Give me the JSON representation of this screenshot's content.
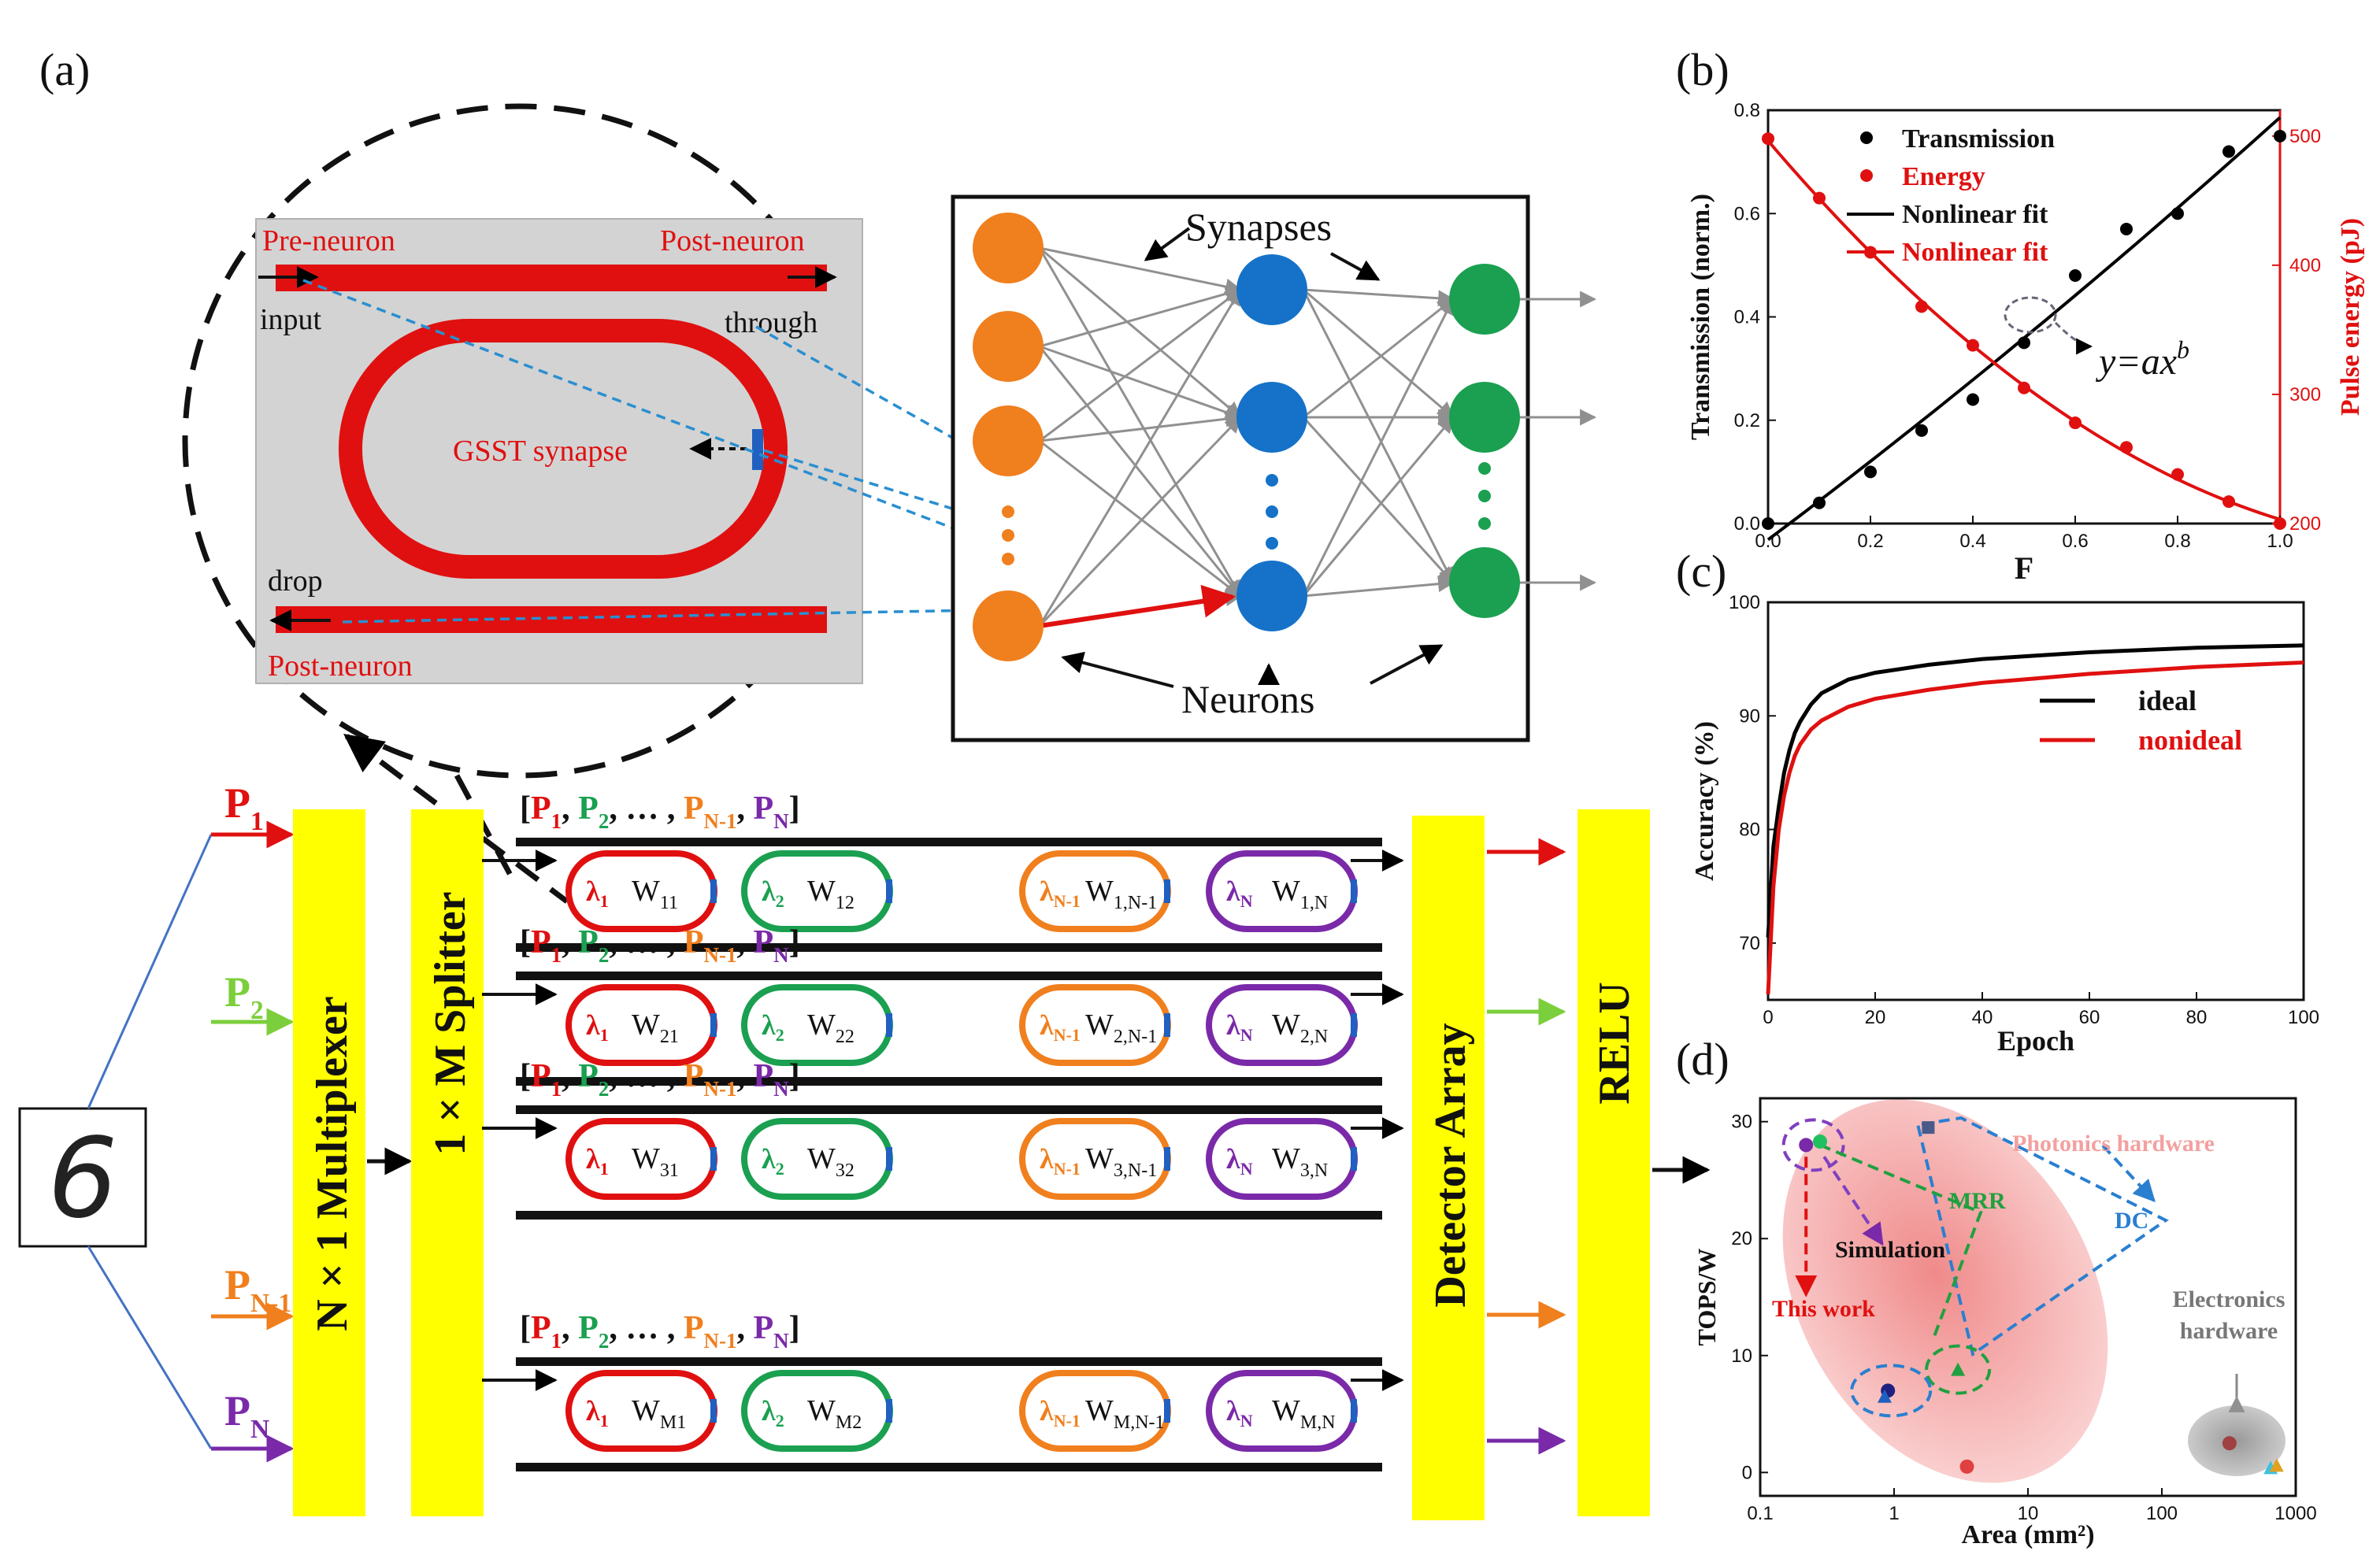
{
  "panels": {
    "a": "(a)",
    "b": "(b)",
    "c": "(c)",
    "d": "(d)"
  },
  "inset": {
    "pre_neuron": "Pre-neuron",
    "post_neuron_top": "Post-neuron",
    "post_neuron_bottom": "Post-neuron",
    "input": "input",
    "through": "through",
    "drop": "drop",
    "synapse": "GSST synapse"
  },
  "network": {
    "synapses": "Synapses",
    "neurons": "Neurons"
  },
  "array": {
    "digit": "6",
    "inputs": [
      {
        "base": "P",
        "sub": "1",
        "color": "#e01010"
      },
      {
        "base": "P",
        "sub": "2",
        "color": "#7ccf3c"
      },
      {
        "base": "P",
        "sub": "N-1",
        "color": "#f07f1e"
      },
      {
        "base": "P",
        "sub": "N",
        "color": "#7a2aa8"
      }
    ],
    "multiplexer": "N × 1 Multiplexer",
    "splitter": "1 × M Splitter",
    "detector": "Detector Array",
    "relu": "RELU",
    "vector_label": [
      "[",
      "P",
      "1",
      ", ",
      "P",
      "2",
      ", … , ",
      "P",
      "N-1",
      ", ",
      "P",
      "N",
      "]"
    ],
    "wavelengths": [
      "λ",
      "λ",
      "λ",
      "λ"
    ],
    "wavelength_subs": [
      "1",
      "2",
      "N-1",
      "N"
    ],
    "rows": [
      {
        "w": [
          "11",
          "12",
          "1,N-1",
          "1,N"
        ]
      },
      {
        "w": [
          "21",
          "22",
          "2,N-1",
          "2,N"
        ]
      },
      {
        "w": [
          "31",
          "32",
          "3,N-1",
          "3,N"
        ]
      },
      {
        "w": [
          "M1",
          "M2",
          "M,N-1",
          "M,N"
        ]
      }
    ]
  },
  "colors": {
    "red": "#e01010",
    "green": "#1aa050",
    "orange": "#f07f1e",
    "purple": "#7a2aa8",
    "blue_node": "#1572c8",
    "yellow": "#ffff00",
    "pink": "#f3a7a7"
  },
  "chart_data": [
    {
      "id": "b",
      "type": "scatter",
      "xlabel": "F",
      "ylabel": "Transmission (norm.)",
      "ylabel_right": "Pulse energy (pJ)",
      "xlim": [
        0,
        1.0
      ],
      "ylim": [
        0,
        0.8
      ],
      "ylim_right": [
        200,
        520
      ],
      "x_ticks": [
        "0.0",
        "0.2",
        "0.4",
        "0.6",
        "0.8",
        "1.0"
      ],
      "y_ticks": [
        "0.0",
        "0.2",
        "0.4",
        "0.6",
        "0.8"
      ],
      "y_right_ticks": [
        "200",
        "300",
        "400",
        "500"
      ],
      "legend": [
        "Transmission",
        "Energy",
        "Nonlinear fit",
        "Nonlinear fit"
      ],
      "annotation": "y=ax^b",
      "series": [
        {
          "name": "Transmission",
          "color": "#000000",
          "axis": "left",
          "x": [
            0,
            0.1,
            0.2,
            0.3,
            0.4,
            0.5,
            0.6,
            0.7,
            0.8,
            0.9,
            1.0
          ],
          "y": [
            0.0,
            0.04,
            0.1,
            0.18,
            0.24,
            0.35,
            0.48,
            0.57,
            0.6,
            0.72,
            0.75
          ]
        },
        {
          "name": "Energy",
          "color": "#e01010",
          "axis": "right",
          "x": [
            0,
            0.1,
            0.2,
            0.3,
            0.4,
            0.5,
            0.6,
            0.7,
            0.8,
            0.9,
            1.0
          ],
          "y": [
            498,
            452,
            410,
            368,
            338,
            305,
            278,
            259,
            238,
            217,
            200
          ]
        }
      ]
    },
    {
      "id": "c",
      "type": "line",
      "xlabel": "Epoch",
      "ylabel": "Accuracy (%)",
      "xlim": [
        0,
        100
      ],
      "ylim": [
        65,
        100
      ],
      "x_ticks": [
        "0",
        "20",
        "40",
        "60",
        "80",
        "100"
      ],
      "y_ticks": [
        "70",
        "80",
        "90",
        "100"
      ],
      "legend": [
        "ideal",
        "nonideal"
      ],
      "series": [
        {
          "name": "ideal",
          "color": "#000000",
          "x": [
            0,
            1,
            2,
            3,
            4,
            5,
            6,
            8,
            10,
            15,
            20,
            30,
            40,
            50,
            60,
            70,
            80,
            90,
            100
          ],
          "y": [
            70.5,
            78.5,
            82,
            85,
            87,
            88.5,
            89.5,
            91,
            92,
            93.2,
            93.8,
            94.5,
            95,
            95.3,
            95.6,
            95.8,
            96,
            96.1,
            96.2
          ]
        },
        {
          "name": "nonideal",
          "color": "#e01010",
          "x": [
            0,
            1,
            2,
            3,
            4,
            5,
            6,
            8,
            10,
            15,
            20,
            30,
            40,
            50,
            60,
            70,
            80,
            90,
            100
          ],
          "y": [
            65.5,
            75,
            80,
            83,
            85,
            86.5,
            87.5,
            88.8,
            89.6,
            90.8,
            91.5,
            92.3,
            92.9,
            93.3,
            93.7,
            94,
            94.3,
            94.5,
            94.7
          ]
        }
      ]
    },
    {
      "id": "d",
      "type": "scatter",
      "xlabel": "Area (mm²)",
      "ylabel": "TOPS/W",
      "xscale": "log",
      "xlim": [
        0.1,
        1000
      ],
      "ylim": [
        -2,
        32
      ],
      "x_ticks": [
        "0.1",
        "1",
        "10",
        "100",
        "1000"
      ],
      "y_ticks": [
        "0",
        "10",
        "20",
        "30"
      ],
      "annotations": [
        "Photonics hardware",
        "DC",
        "MRR",
        "Simulation",
        "This work",
        "Electronics hardware"
      ],
      "points": [
        {
          "x": 0.22,
          "y": 28,
          "color": "#7a2aa8",
          "shape": "circle"
        },
        {
          "x": 0.28,
          "y": 28.3,
          "color": "#20c060",
          "shape": "circle"
        },
        {
          "x": 1.8,
          "y": 29.5,
          "color": "#4a5a8a",
          "shape": "square"
        },
        {
          "x": 3.0,
          "y": 8.8,
          "color": "#20a040",
          "shape": "triangle"
        },
        {
          "x": 0.9,
          "y": 7.0,
          "color": "#202080",
          "shape": "circle"
        },
        {
          "x": 0.85,
          "y": 6.5,
          "color": "#2060c0",
          "shape": "triangle"
        },
        {
          "x": 3.5,
          "y": 0.5,
          "color": "#e04040",
          "shape": "circle"
        },
        {
          "x": 320,
          "y": 2.5,
          "color": "#a04040",
          "shape": "circle"
        },
        {
          "x": 650,
          "y": 0.4,
          "color": "#40c0e0",
          "shape": "triangle"
        },
        {
          "x": 720,
          "y": 0.6,
          "color": "#e0a020",
          "shape": "triangle"
        }
      ]
    }
  ]
}
